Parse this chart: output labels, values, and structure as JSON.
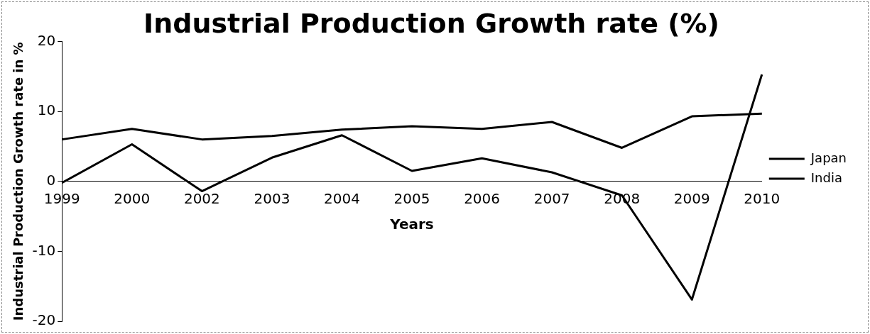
{
  "chart_data": {
    "type": "line",
    "title": "Industrial Production Growth rate (%)",
    "xlabel": "Years",
    "ylabel": "Industrial Production Growth rate in %",
    "categories": [
      "1999",
      "2000",
      "2002",
      "2003",
      "2004",
      "2005",
      "2006",
      "2007",
      "2008",
      "2009",
      "2010"
    ],
    "series": [
      {
        "name": "Japan",
        "color": "#000000",
        "values": [
          -0.2,
          5.3,
          -1.4,
          3.4,
          6.6,
          1.5,
          3.3,
          1.3,
          -2.0,
          -16.9,
          15.3
        ]
      },
      {
        "name": "India",
        "color": "#000000",
        "values": [
          6.0,
          7.5,
          6.0,
          6.5,
          7.4,
          7.9,
          7.5,
          8.5,
          4.8,
          9.3,
          9.7
        ]
      }
    ],
    "ylim": [
      -20,
      20
    ],
    "yticks": [
      -20,
      -10,
      0,
      10,
      20
    ],
    "grid": false,
    "legend": "right",
    "marker": "none",
    "line_style": "solid"
  }
}
